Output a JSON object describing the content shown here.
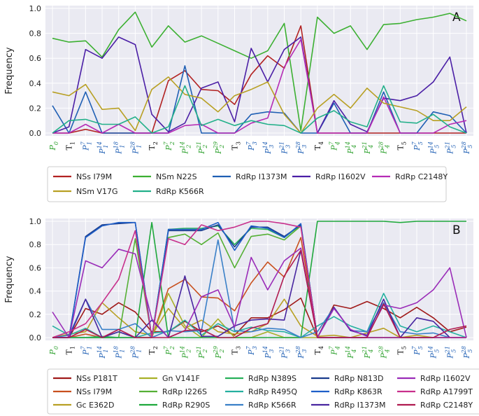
{
  "chart_data": [
    {
      "type": "line",
      "panel_letter": "A",
      "title": "",
      "xlabel": "",
      "ylabel": "Frequency",
      "ylim": [
        0,
        1.0
      ],
      "yticks": [
        "0.0",
        "0.2",
        "0.4",
        "0.6",
        "0.8",
        "1.0"
      ],
      "grid": true,
      "x": [
        "P0",
        "T1",
        "P71",
        "P141",
        "P181",
        "P281",
        "T2",
        "P72",
        "P142",
        "P212",
        "P292",
        "T3",
        "P73",
        "P143",
        "P213",
        "P283",
        "T4",
        "P74",
        "P144",
        "P214",
        "P284",
        "T5",
        "P75",
        "P145",
        "P215",
        "P285"
      ],
      "series": [
        {
          "name": "NSs I79M",
          "color": "#b22222",
          "values": [
            0,
            0,
            0.03,
            0,
            0,
            0,
            0,
            0.42,
            0.5,
            0.35,
            0.34,
            0.23,
            0.47,
            0.62,
            0.52,
            0.86,
            0,
            0,
            0,
            0,
            0,
            0,
            0,
            0,
            0,
            0
          ]
        },
        {
          "name": "NSm N22S",
          "color": "#3cb032",
          "values": [
            0.76,
            0.73,
            0.74,
            0.61,
            0.83,
            0.97,
            0.69,
            0.86,
            0.73,
            0.78,
            0.72,
            0.66,
            0.6,
            0.66,
            0.88,
            0.02,
            0.93,
            0.8,
            0.86,
            0.67,
            0.87,
            0.88,
            0.91,
            0.93,
            0.96,
            0.9
          ]
        },
        {
          "name": "RdRp I1373M",
          "color": "#1f5fb4",
          "values": [
            0.22,
            0,
            0.33,
            0,
            0,
            0,
            0,
            0,
            0.54,
            0,
            0,
            0,
            0.15,
            0.17,
            0.16,
            0,
            0,
            0.24,
            0,
            0,
            0.33,
            0,
            0,
            0.17,
            0.14,
            0
          ]
        },
        {
          "name": "RdRp I1602V",
          "color": "#4b1fa6",
          "values": [
            0,
            0.05,
            0.67,
            0.6,
            0.77,
            0.71,
            0.15,
            0.01,
            0.08,
            0.36,
            0.41,
            0.09,
            0.68,
            0.41,
            0.67,
            0.77,
            0,
            0.26,
            0.07,
            0.01,
            0.28,
            0.26,
            0.3,
            0.41,
            0.61,
            0
          ]
        },
        {
          "name": "RdRp C2148Y",
          "color": "#b52bb5",
          "values": [
            0,
            0,
            0.07,
            0,
            0.07,
            0,
            0,
            0,
            0.06,
            0.07,
            0,
            0,
            0.08,
            0.12,
            0.53,
            0.75,
            0,
            0,
            0,
            0,
            0.29,
            0,
            0,
            0,
            0.07,
            0.1
          ]
        },
        {
          "name": "NSm V17G",
          "color": "#b8a024",
          "values": [
            0.33,
            0.3,
            0.39,
            0.19,
            0.2,
            0.02,
            0.35,
            0.45,
            0.31,
            0.28,
            0.17,
            0.3,
            0.35,
            0.41,
            0.15,
            0,
            0.2,
            0.31,
            0.2,
            0.36,
            0.24,
            0.21,
            0.18,
            0.1,
            0.1,
            0.21
          ]
        },
        {
          "name": "RdRp K566R",
          "color": "#23b08a",
          "values": [
            0,
            0.1,
            0.11,
            0.07,
            0.07,
            0.13,
            0,
            0.05,
            0.38,
            0.06,
            0.11,
            0.06,
            0.1,
            0.07,
            0.06,
            0,
            0.12,
            0.18,
            0.09,
            0.05,
            0.38,
            0.09,
            0.08,
            0.15,
            0.05,
            0
          ]
        }
      ],
      "legend": {
        "placement": "below",
        "columns": 5,
        "order": [
          "NSs I79M",
          "NSm N22S",
          "RdRp I1373M",
          "RdRp I1602V",
          "RdRp C2148Y",
          "NSm V17G",
          "RdRp K566R"
        ]
      }
    },
    {
      "type": "line",
      "panel_letter": "B",
      "title": "",
      "xlabel": "",
      "ylabel": "Frequency",
      "ylim": [
        0,
        1.0
      ],
      "yticks": [
        "0.0",
        "0.2",
        "0.4",
        "0.6",
        "0.8",
        "1.0"
      ],
      "grid": true,
      "x": [
        "P0",
        "T1",
        "P71",
        "P141",
        "P181",
        "P281",
        "T2",
        "P72",
        "P142",
        "P212",
        "P292",
        "T3",
        "P73",
        "P143",
        "P213",
        "P283",
        "T4",
        "P74",
        "P144",
        "P214",
        "P284",
        "T5",
        "P75",
        "P145",
        "P215",
        "P285"
      ],
      "series": [
        {
          "name": "NSs P181T",
          "color": "#a01a1a",
          "values": [
            0,
            0,
            0.25,
            0.2,
            0.3,
            0.22,
            0.05,
            0.05,
            0.14,
            0.05,
            0.1,
            0.02,
            0.17,
            0.17,
            0.24,
            0.34,
            0,
            0.28,
            0.25,
            0.31,
            0.25,
            0.17,
            0.26,
            0.17,
            0.05,
            0.09
          ]
        },
        {
          "name": "NSs I79M",
          "color": "#c8501e",
          "values": [
            0,
            0,
            0.03,
            0,
            0,
            0,
            0,
            0.42,
            0.5,
            0.35,
            0.34,
            0.23,
            0.47,
            0.65,
            0.52,
            0.86,
            0,
            0,
            0,
            0,
            0,
            0,
            0,
            0,
            0,
            0
          ]
        },
        {
          "name": "Gc E362D",
          "color": "#b8a024",
          "values": [
            0,
            0.03,
            0.05,
            0.3,
            0.17,
            0.05,
            0.02,
            0.25,
            0.08,
            0.15,
            0.05,
            0.03,
            0.05,
            0.12,
            0.33,
            0.1,
            0.01,
            0.02,
            0,
            0.04,
            0.08,
            0,
            0.02,
            0,
            0,
            0
          ]
        },
        {
          "name": "Gn V141F",
          "color": "#a8b028",
          "values": [
            0,
            0,
            0,
            0,
            0,
            0,
            0,
            0.38,
            0.1,
            0,
            0.16,
            0,
            0,
            0.05,
            0,
            0,
            0,
            0,
            0,
            0,
            0,
            0,
            0,
            0,
            0,
            0
          ]
        },
        {
          "name": "RdRp I226S",
          "color": "#55b035",
          "values": [
            0,
            0,
            0,
            0,
            0,
            0.85,
            0,
            0.86,
            0.89,
            0.8,
            0.9,
            0.6,
            0.87,
            0.89,
            0.84,
            0.96,
            0,
            0,
            0,
            0,
            0,
            0,
            0,
            0,
            0,
            0
          ]
        },
        {
          "name": "RdRp R290S",
          "color": "#1fa83c",
          "values": [
            0,
            0,
            0,
            0,
            0,
            0,
            0.99,
            0,
            0,
            0,
            0,
            0,
            0,
            0,
            0,
            0,
            1.0,
            1.0,
            1.0,
            1.0,
            1.0,
            0.99,
            1.0,
            1.0,
            1.0,
            1.0
          ]
        },
        {
          "name": "RdRp N389S",
          "color": "#28b05a",
          "values": [
            0,
            0,
            0,
            0.01,
            0,
            0,
            0,
            0.93,
            0.94,
            0.94,
            0.96,
            0.8,
            0.94,
            0.93,
            0.86,
            0.97,
            0,
            0,
            0,
            0,
            0,
            0,
            0,
            0,
            0,
            0
          ]
        },
        {
          "name": "RdRp R495Q",
          "color": "#25b0a0",
          "values": [
            0.1,
            0.02,
            0.08,
            0,
            0.05,
            0,
            0.04,
            0.05,
            0.15,
            0.02,
            0.12,
            0.05,
            0.09,
            0.06,
            0.05,
            0,
            0.1,
            0.18,
            0.1,
            0.05,
            0.38,
            0.1,
            0.05,
            0.1,
            0.05,
            0
          ]
        },
        {
          "name": "RdRp K566R",
          "color": "#3a80c8",
          "values": [
            0,
            0.02,
            0.33,
            0.07,
            0.07,
            0.12,
            0,
            0.06,
            0.05,
            0.06,
            0.84,
            0.06,
            0.05,
            0.08,
            0.07,
            0,
            0.05,
            0.26,
            0.06,
            0.05,
            0.3,
            0.05,
            0.03,
            0.04,
            0,
            0
          ]
        },
        {
          "name": "RdRp N813D",
          "color": "#1a3c8c",
          "values": [
            0,
            0,
            0.87,
            0.97,
            0.98,
            0.99,
            0,
            0.92,
            0.92,
            0.92,
            0.97,
            0.78,
            0.95,
            0.95,
            0.87,
            0.97,
            0,
            0,
            0,
            0,
            0,
            0,
            0,
            0,
            0,
            0
          ]
        },
        {
          "name": "RdRp K863R",
          "color": "#1f5fc8",
          "values": [
            0,
            0,
            0.86,
            0.96,
            0.99,
            0.99,
            0,
            0.93,
            0.93,
            0.93,
            0.99,
            0.75,
            0.96,
            0.94,
            0.86,
            0.98,
            0,
            0,
            0,
            0,
            0,
            0,
            0,
            0,
            0,
            0
          ]
        },
        {
          "name": "RdRp I1373M",
          "color": "#4826a0",
          "values": [
            0,
            0,
            0.33,
            0,
            0.05,
            0,
            0.15,
            0,
            0.53,
            0.01,
            0.01,
            0.1,
            0.15,
            0.16,
            0.15,
            0.75,
            0,
            0.26,
            0.06,
            0.02,
            0.33,
            0,
            0.17,
            0.14,
            0,
            0
          ]
        },
        {
          "name": "RdRp I1602V",
          "color": "#9a2cb8",
          "values": [
            0.22,
            0,
            0.66,
            0.6,
            0.76,
            0.72,
            0.16,
            0,
            0.06,
            0.35,
            0.41,
            0.09,
            0.69,
            0.41,
            0.66,
            0.77,
            0,
            0.25,
            0.07,
            0.01,
            0.28,
            0.25,
            0.3,
            0.41,
            0.6,
            0
          ]
        },
        {
          "name": "RdRp A1799T",
          "color": "#c8308c",
          "values": [
            0,
            0.05,
            0.12,
            0.3,
            0.5,
            0.92,
            0,
            0.85,
            0.8,
            0.97,
            0.92,
            0.95,
            1.0,
            1.0,
            0.98,
            0.95,
            0,
            0,
            0,
            0,
            0,
            0,
            0,
            0,
            0,
            0
          ]
        },
        {
          "name": "RdRp C2148Y",
          "color": "#b01a50",
          "values": [
            0,
            0,
            0.07,
            0,
            0.07,
            0,
            0,
            0,
            0.06,
            0.07,
            0,
            0,
            0.08,
            0.12,
            0.53,
            0.75,
            0,
            0,
            0,
            0,
            0.29,
            0,
            0,
            0,
            0.07,
            0.1
          ]
        }
      ],
      "legend": {
        "placement": "below",
        "columns": 5,
        "order": [
          "NSs P181T",
          "Gn V141F",
          "RdRp N389S",
          "RdRp N813D",
          "RdRp I1602V",
          "NSs I79M",
          "RdRp I226S",
          "RdRp R495Q",
          "RdRp K863R",
          "RdRp A1799T",
          "Gc E362D",
          "RdRp R290S",
          "RdRp K566R",
          "RdRp I1373M",
          "RdRp C2148Y"
        ]
      }
    }
  ],
  "x_tick_labels": [
    {
      "kind": "P",
      "main": "P",
      "sub": "0",
      "sup": "",
      "color": "#2ca02c"
    },
    {
      "kind": "T",
      "main": "T",
      "sub": "1",
      "sup": "",
      "color": "#111111"
    },
    {
      "kind": "P",
      "main": "P",
      "sub": "1",
      "sup": "7",
      "color": "#1f5fb4"
    },
    {
      "kind": "P",
      "main": "P",
      "sub": "1",
      "sup": "14",
      "color": "#1f5fb4"
    },
    {
      "kind": "P",
      "main": "P",
      "sub": "1",
      "sup": "18",
      "color": "#1f5fb4"
    },
    {
      "kind": "P",
      "main": "P",
      "sub": "1",
      "sup": "28",
      "color": "#1f5fb4"
    },
    {
      "kind": "T",
      "main": "T",
      "sub": "2",
      "sup": "",
      "color": "#111111"
    },
    {
      "kind": "P",
      "main": "P",
      "sub": "2",
      "sup": "7",
      "color": "#2ca02c"
    },
    {
      "kind": "P",
      "main": "P",
      "sub": "2",
      "sup": "14",
      "color": "#2ca02c"
    },
    {
      "kind": "P",
      "main": "P",
      "sub": "2",
      "sup": "21",
      "color": "#2ca02c"
    },
    {
      "kind": "P",
      "main": "P",
      "sub": "2",
      "sup": "29",
      "color": "#2ca02c"
    },
    {
      "kind": "T",
      "main": "T",
      "sub": "3",
      "sup": "",
      "color": "#111111"
    },
    {
      "kind": "P",
      "main": "P",
      "sub": "3",
      "sup": "7",
      "color": "#1f5fb4"
    },
    {
      "kind": "P",
      "main": "P",
      "sub": "3",
      "sup": "14",
      "color": "#1f5fb4"
    },
    {
      "kind": "P",
      "main": "P",
      "sub": "3",
      "sup": "21",
      "color": "#1f5fb4"
    },
    {
      "kind": "P",
      "main": "P",
      "sub": "3",
      "sup": "28",
      "color": "#1f5fb4"
    },
    {
      "kind": "T",
      "main": "T",
      "sub": "4",
      "sup": "",
      "color": "#111111"
    },
    {
      "kind": "P",
      "main": "P",
      "sub": "4",
      "sup": "7",
      "color": "#2ca02c"
    },
    {
      "kind": "P",
      "main": "P",
      "sub": "4",
      "sup": "14",
      "color": "#2ca02c"
    },
    {
      "kind": "P",
      "main": "P",
      "sub": "4",
      "sup": "21",
      "color": "#2ca02c"
    },
    {
      "kind": "P",
      "main": "P",
      "sub": "4",
      "sup": "28",
      "color": "#2ca02c"
    },
    {
      "kind": "T",
      "main": "T",
      "sub": "5",
      "sup": "",
      "color": "#111111"
    },
    {
      "kind": "P",
      "main": "P",
      "sub": "5",
      "sup": "7",
      "color": "#1f5fb4"
    },
    {
      "kind": "P",
      "main": "P",
      "sub": "5",
      "sup": "14",
      "color": "#1f5fb4"
    },
    {
      "kind": "P",
      "main": "P",
      "sub": "5",
      "sup": "21",
      "color": "#1f5fb4"
    },
    {
      "kind": "P",
      "main": "P",
      "sub": "5",
      "sup": "28",
      "color": "#1f5fb4"
    }
  ]
}
